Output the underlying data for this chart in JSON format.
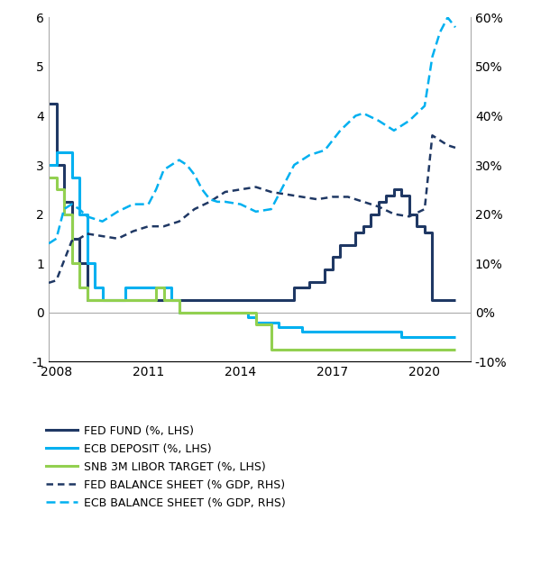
{
  "fed_fund": {
    "x": [
      2007.75,
      2008.0,
      2008.25,
      2008.5,
      2008.75,
      2009.0,
      2009.5,
      2010.0,
      2010.5,
      2011.0,
      2011.5,
      2011.75,
      2012.0,
      2013.0,
      2014.0,
      2015.0,
      2015.75,
      2016.0,
      2016.25,
      2016.75,
      2017.0,
      2017.25,
      2017.75,
      2018.0,
      2018.25,
      2018.5,
      2018.75,
      2019.0,
      2019.25,
      2019.5,
      2019.75,
      2020.0,
      2020.25,
      2020.5,
      2021.0
    ],
    "y": [
      4.25,
      3.0,
      2.25,
      1.5,
      1.0,
      0.25,
      0.25,
      0.25,
      0.25,
      0.25,
      0.25,
      0.25,
      0.25,
      0.25,
      0.25,
      0.25,
      0.5,
      0.5,
      0.625,
      0.875,
      1.125,
      1.375,
      1.625,
      1.75,
      2.0,
      2.25,
      2.375,
      2.5,
      2.375,
      2.0,
      1.75,
      1.625,
      0.25,
      0.25,
      0.25
    ],
    "color": "#1f3864",
    "lw": 2.2
  },
  "ecb_deposit": {
    "x": [
      2007.75,
      2008.0,
      2008.25,
      2008.5,
      2008.75,
      2009.0,
      2009.25,
      2009.5,
      2010.0,
      2010.25,
      2011.0,
      2011.75,
      2012.0,
      2012.5,
      2013.0,
      2014.0,
      2014.25,
      2014.5,
      2015.0,
      2015.25,
      2016.0,
      2019.0,
      2019.25,
      2020.0,
      2021.0
    ],
    "y": [
      3.0,
      3.25,
      3.25,
      2.75,
      2.0,
      1.0,
      0.5,
      0.25,
      0.25,
      0.5,
      0.5,
      0.25,
      0.0,
      0.0,
      0.0,
      0.0,
      -0.1,
      -0.2,
      -0.2,
      -0.3,
      -0.4,
      -0.4,
      -0.5,
      -0.5,
      -0.5
    ],
    "color": "#00b0f0",
    "lw": 2.2
  },
  "snb_libor": {
    "x": [
      2007.75,
      2008.0,
      2008.25,
      2008.5,
      2008.75,
      2009.0,
      2010.0,
      2011.0,
      2011.25,
      2011.5,
      2012.0,
      2014.0,
      2014.5,
      2015.0,
      2016.0,
      2021.0
    ],
    "y": [
      2.75,
      2.5,
      2.0,
      1.0,
      0.5,
      0.25,
      0.25,
      0.25,
      0.5,
      0.25,
      0.0,
      0.0,
      -0.25,
      -0.75,
      -0.75,
      -0.75
    ],
    "color": "#92d050",
    "lw": 2.2
  },
  "fed_balance": {
    "x": [
      2007.75,
      2008.0,
      2008.5,
      2008.75,
      2009.0,
      2009.5,
      2010.0,
      2010.5,
      2011.0,
      2011.5,
      2012.0,
      2012.5,
      2013.0,
      2013.5,
      2014.0,
      2014.5,
      2015.0,
      2015.5,
      2016.0,
      2016.5,
      2017.0,
      2017.5,
      2018.0,
      2018.5,
      2019.0,
      2019.5,
      2020.0,
      2020.25,
      2020.5,
      2020.75,
      2021.0
    ],
    "y": [
      6.0,
      6.5,
      14.5,
      15.0,
      16.0,
      15.5,
      15.0,
      16.5,
      17.5,
      17.5,
      18.5,
      21.0,
      22.5,
      24.5,
      25.0,
      25.5,
      24.5,
      24.0,
      23.5,
      23.0,
      23.5,
      23.5,
      22.5,
      21.5,
      20.0,
      19.5,
      21.0,
      36.0,
      35.0,
      34.0,
      33.5
    ],
    "color": "#1f3864",
    "lw": 1.8
  },
  "ecb_balance": {
    "x": [
      2007.75,
      2008.0,
      2008.25,
      2008.5,
      2008.75,
      2009.0,
      2009.25,
      2009.5,
      2010.0,
      2010.5,
      2011.0,
      2011.25,
      2011.5,
      2011.75,
      2012.0,
      2012.25,
      2012.5,
      2012.75,
      2013.0,
      2013.25,
      2013.5,
      2014.0,
      2014.5,
      2015.0,
      2015.25,
      2015.5,
      2015.75,
      2016.0,
      2016.25,
      2016.75,
      2017.0,
      2017.25,
      2017.5,
      2017.75,
      2018.0,
      2018.5,
      2019.0,
      2019.25,
      2019.5,
      2019.75,
      2020.0,
      2020.25,
      2020.5,
      2020.75,
      2021.0
    ],
    "y": [
      14.0,
      15.0,
      21.0,
      22.0,
      21.0,
      19.5,
      19.0,
      18.5,
      20.5,
      22.0,
      22.0,
      25.0,
      29.0,
      30.0,
      31.0,
      30.0,
      28.0,
      25.0,
      23.0,
      22.5,
      22.5,
      22.0,
      20.5,
      21.0,
      24.0,
      27.0,
      30.0,
      31.0,
      32.0,
      33.0,
      35.0,
      37.0,
      38.5,
      40.0,
      40.5,
      39.0,
      37.0,
      38.0,
      39.0,
      40.5,
      42.0,
      52.0,
      57.0,
      60.0,
      58.0
    ],
    "color": "#00b0f0",
    "lw": 1.8
  },
  "xlim": [
    2007.75,
    2021.5
  ],
  "ylim_left": [
    -1,
    6
  ],
  "ylim_right": [
    -10,
    60
  ],
  "xticks": [
    2008,
    2011,
    2014,
    2017,
    2020
  ],
  "yticks_left": [
    -1,
    0,
    1,
    2,
    3,
    4,
    5,
    6
  ],
  "yticks_right": [
    -10,
    0,
    10,
    20,
    30,
    40,
    50,
    60
  ],
  "legend_labels": [
    "FED FUND (%, LHS)",
    "ECB DEPOSIT (%, LHS)",
    "SNB 3M LIBOR TARGET (%, LHS)",
    "FED BALANCE SHEET (% GDP, RHS)",
    "ECB BALANCE SHEET (% GDP, RHS)"
  ],
  "legend_colors": [
    "#1f3864",
    "#00b0f0",
    "#92d050",
    "#1f3864",
    "#00b0f0"
  ],
  "legend_dashes": [
    false,
    false,
    false,
    true,
    true
  ],
  "bg_color": "#ffffff"
}
